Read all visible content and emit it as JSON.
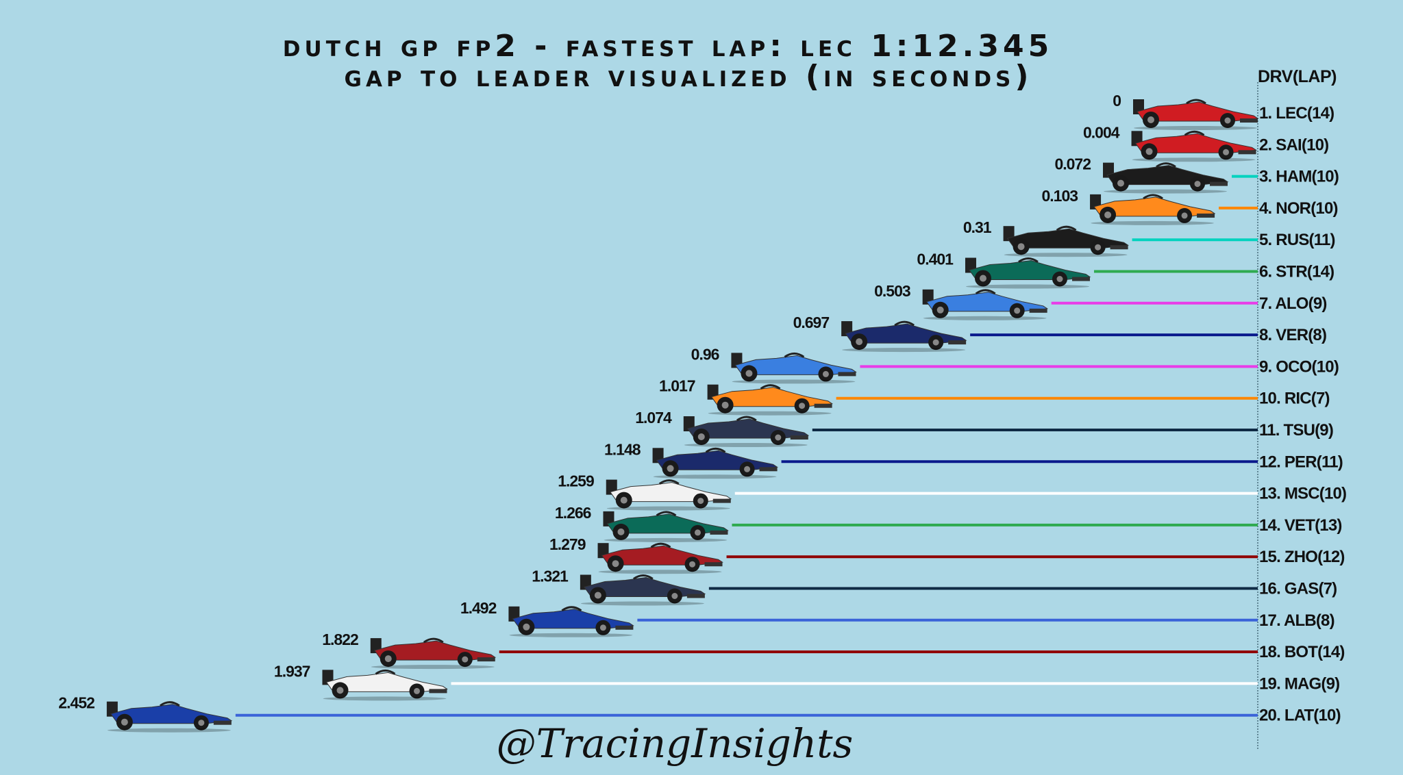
{
  "title": {
    "line1": "DUTCH GP FP2 - FASTEST LAP: LEC 1:12.345",
    "line2": "GAP TO LEADER VISUALIZED (IN SECONDS)"
  },
  "legend_header": "DRV(LAP)",
  "watermark": "@TracingInsights",
  "chart_data": {
    "type": "bar",
    "orientation": "horizontal",
    "title": "DUTCH GP FP2 - FASTEST LAP: LEC 1:12.345 GAP TO LEADER VISUALIZED (IN SECONDS)",
    "xlabel": "",
    "ylabel": "",
    "x_direction": "reversed",
    "xlim": [
      0,
      2.6
    ],
    "grid": false,
    "categories": [
      "1. LEC(14)",
      "2. SAI(10)",
      "3. HAM(10)",
      "4. NOR(10)",
      "5. RUS(11)",
      "6. STR(14)",
      "7. ALO(9)",
      "8. VER(8)",
      "9. OCO(10)",
      "10. RIC(7)",
      "11. TSU(9)",
      "12. PER(11)",
      "13. MSC(10)",
      "14. VET(13)",
      "15. ZHO(12)",
      "16. GAS(7)",
      "17. ALB(8)",
      "18. BOT(14)",
      "19. MAG(9)",
      "20. LAT(10)"
    ],
    "values": [
      0,
      0.004,
      0.072,
      0.103,
      0.31,
      0.401,
      0.503,
      0.697,
      0.96,
      1.017,
      1.074,
      1.148,
      1.259,
      1.266,
      1.279,
      1.321,
      1.492,
      1.822,
      1.937,
      2.452
    ],
    "value_labels": [
      "0",
      "0.004",
      "0.072",
      "0.103",
      "0.31",
      "0.401",
      "0.503",
      "0.697",
      "0.96",
      "1.017",
      "1.074",
      "1.148",
      "1.259",
      "1.266",
      "1.279",
      "1.321",
      "1.492",
      "1.822",
      "1.937",
      "2.452"
    ],
    "colors": [
      "#dc0000",
      "#dc0000",
      "#00d2be",
      "#ff8700",
      "#00d2be",
      "#2eaa4f",
      "#e83ce8",
      "#0a1a8c",
      "#e83ce8",
      "#ff8700",
      "#0f2a44",
      "#0a1a8c",
      "#ffffff",
      "#2eaa4f",
      "#900000",
      "#0f2a44",
      "#3a63d8",
      "#900000",
      "#ffffff",
      "#3a63d8"
    ],
    "car_colors": [
      "#d01c22",
      "#d01c22",
      "#1c1c1c",
      "#ff8a1c",
      "#1c1c1c",
      "#0b6b58",
      "#3a7fe0",
      "#1b2a6b",
      "#3a7fe0",
      "#ff8a1c",
      "#2b3550",
      "#1b2a6b",
      "#f2f2f2",
      "#0b6b58",
      "#a51c22",
      "#2b3550",
      "#1a3fa8",
      "#a51c22",
      "#f2f2f2",
      "#1a3fa8"
    ]
  }
}
